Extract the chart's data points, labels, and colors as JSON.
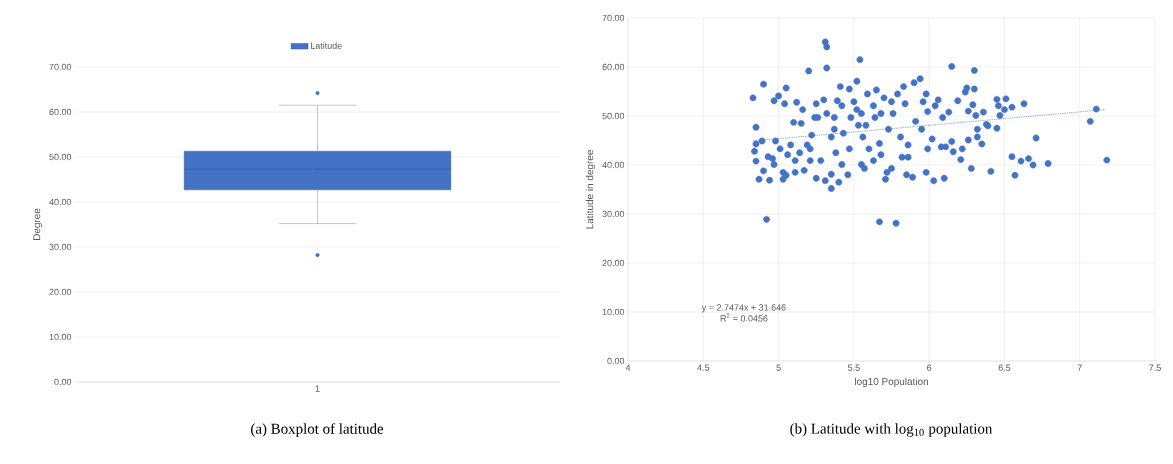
{
  "chart_data": [
    {
      "type": "box",
      "categories": [
        "1"
      ],
      "ylabel": "Degree",
      "legend": "top",
      "grid": "y",
      "ylim": [
        0,
        70
      ],
      "yticks": [
        {
          "value": 0,
          "label": "0.00"
        },
        {
          "value": 10,
          "label": "10.00"
        },
        {
          "value": 20,
          "label": "20.00"
        },
        {
          "value": 30,
          "label": "30.00"
        },
        {
          "value": 40,
          "label": "40.00"
        },
        {
          "value": 50,
          "label": "50.00"
        },
        {
          "value": 60,
          "label": "60.00"
        },
        {
          "value": 70,
          "label": "70.00"
        }
      ],
      "series": [
        {
          "name": "Latitude",
          "color": "#4472c4",
          "boxes": [
            {
              "low": 35.2,
              "q1": 42.7,
              "median": 47.3,
              "q3": 51.3,
              "high": 61.5,
              "mean": 47.0,
              "outliers": [
                64.2,
                28.2
              ]
            }
          ]
        }
      ],
      "annotations": [
        "(a)  Boxplot of latitude"
      ]
    },
    {
      "type": "scatter",
      "xlabel": "log10 Population",
      "ylabel": "Latitude in degree",
      "grid": true,
      "marker": "circle",
      "xlim": [
        4,
        7.5
      ],
      "xticks": [
        4,
        4.5,
        5,
        5.5,
        6,
        6.5,
        7,
        7.5
      ],
      "ylim": [
        0,
        70
      ],
      "yticks": [
        {
          "value": 0,
          "label": "0.00"
        },
        {
          "value": 10,
          "label": "10.00"
        },
        {
          "value": 20,
          "label": "20.00"
        },
        {
          "value": 30,
          "label": "30.00"
        },
        {
          "value": 40,
          "label": "40.00"
        },
        {
          "value": 50,
          "label": "50.00"
        },
        {
          "value": 60,
          "label": "60.00"
        },
        {
          "value": 70,
          "label": "70.00"
        }
      ],
      "series": [
        {
          "color": "#4472c4",
          "x": [
            4.83,
            4.85,
            4.85,
            4.84,
            4.85,
            4.9,
            4.89,
            4.87,
            4.92,
            4.94,
            4.9,
            4.97,
            5.0,
            5.05,
            5.04,
            4.96,
            4.98,
            5.01,
            5.03,
            5.05,
            5.03,
            5.08,
            5.11,
            5.1,
            5.12,
            5.16,
            5.15,
            5.2,
            5.17,
            5.21,
            5.22,
            5.25,
            5.26,
            5.25,
            5.28,
            5.3,
            5.31,
            5.32,
            5.32,
            5.32,
            5.31,
            5.35,
            5.35,
            5.35,
            5.38,
            5.39,
            5.41,
            5.4,
            5.42,
            5.43,
            5.46,
            5.47,
            5.47,
            5.48,
            5.52,
            5.52,
            5.54,
            5.55,
            5.56,
            5.57,
            5.58,
            5.59,
            5.6,
            5.63,
            5.64,
            5.65,
            5.67,
            5.67,
            5.68,
            5.7,
            5.71,
            5.72,
            5.73,
            5.75,
            5.75,
            5.76,
            5.78,
            5.79,
            5.81,
            5.82,
            5.83,
            5.84,
            5.86,
            5.86,
            5.85,
            5.89,
            5.9,
            5.91,
            5.94,
            5.95,
            5.96,
            5.98,
            5.99,
            5.98,
            5.99,
            6.02,
            6.03,
            6.04,
            6.06,
            6.08,
            6.09,
            6.11,
            6.1,
            6.13,
            6.15,
            6.15,
            6.16,
            6.19,
            6.21,
            6.22,
            6.24,
            6.25,
            6.26,
            6.26,
            6.28,
            6.29,
            6.3,
            6.3,
            6.31,
            6.32,
            6.32,
            6.35,
            6.36,
            6.38,
            6.39,
            6.41,
            6.45,
            6.45,
            6.46,
            6.47,
            6.5,
            6.51,
            6.55,
            6.55,
            6.57,
            6.61,
            6.63,
            6.66,
            6.69,
            6.71,
            6.79,
            7.07,
            7.11,
            7.18,
            5.37,
            5.42,
            5.5,
            5.55,
            5.53,
            5.63,
            5.68,
            5.37,
            5.24,
            5.19,
            5.14,
            5.06,
            4.93,
            4.97,
            5.11,
            5.21
          ],
          "values": [
            53.7,
            47.7,
            44.3,
            42.8,
            40.8,
            56.5,
            44.9,
            37.1,
            28.9,
            36.9,
            38.8,
            53.1,
            54.1,
            55.7,
            52.5,
            41.3,
            44.9,
            43.3,
            38.5,
            37.9,
            37.1,
            44.1,
            40.9,
            48.7,
            52.8,
            51.3,
            48.5,
            59.2,
            38.9,
            40.9,
            46.1,
            52.5,
            49.7,
            37.3,
            40.9,
            53.3,
            65.1,
            64.1,
            59.8,
            50.5,
            36.8,
            35.2,
            38.1,
            45.7,
            42.5,
            53.1,
            56.0,
            36.5,
            40.1,
            46.5,
            38.0,
            55.5,
            43.3,
            49.7,
            57.1,
            51.3,
            61.5,
            40.1,
            45.7,
            39.3,
            48.1,
            54.5,
            43.3,
            40.9,
            49.7,
            55.3,
            44.4,
            28.4,
            42.1,
            53.7,
            37.1,
            38.5,
            47.3,
            39.3,
            52.9,
            50.5,
            28.1,
            54.5,
            45.7,
            41.6,
            56.0,
            52.5,
            44.1,
            41.6,
            38.0,
            37.5,
            56.8,
            48.9,
            57.6,
            47.3,
            52.9,
            54.5,
            50.9,
            38.5,
            43.3,
            45.3,
            36.8,
            52.1,
            53.3,
            43.7,
            49.7,
            43.7,
            37.3,
            50.8,
            60.1,
            44.8,
            42.7,
            53.1,
            41.1,
            43.3,
            54.9,
            55.7,
            51.0,
            45.1,
            39.3,
            52.3,
            59.3,
            55.5,
            50.1,
            47.3,
            45.7,
            44.3,
            50.8,
            48.3,
            48.0,
            38.7,
            53.4,
            47.5,
            52.1,
            50.1,
            51.3,
            53.5,
            51.8,
            41.7,
            37.9,
            40.8,
            52.5,
            41.3,
            40.0,
            45.5,
            40.3,
            48.9,
            51.4,
            41.0,
            49.7,
            52.1,
            52.9,
            50.5,
            48.1,
            52.1,
            50.5,
            47.3,
            49.7,
            44.1,
            42.5,
            42.1,
            41.7,
            40.1,
            38.5,
            43.3
          ]
        },
        {
          "type": "line",
          "color": "#4472c4",
          "line_style": "dotted",
          "marker": "none",
          "x": [
            4.83,
            7.17
          ],
          "values": [
            44.9,
            51.3
          ]
        }
      ],
      "annotations": [
        "y = 2.7474x + 31.646",
        "R$^{2}$ = 0.0456",
        "(b)  Latitude with log$_{10}$ population"
      ]
    }
  ]
}
